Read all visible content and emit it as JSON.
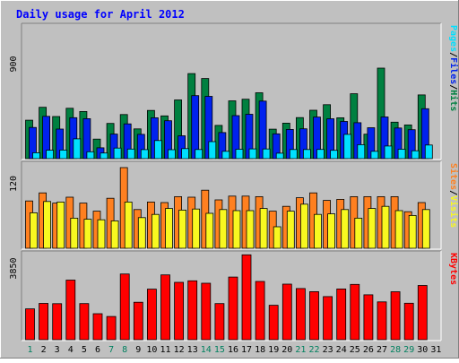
{
  "chart_data": [
    {
      "type": "bar",
      "title": "Daily usage for April 2012",
      "panel": "top",
      "categories": [
        "1",
        "2",
        "3",
        "4",
        "5",
        "6",
        "7",
        "8",
        "9",
        "10",
        "11",
        "12",
        "13",
        "14",
        "15",
        "16",
        "17",
        "18",
        "19",
        "20",
        "21",
        "22",
        "23",
        "24",
        "25",
        "26",
        "27",
        "28",
        "29",
        "30",
        "31"
      ],
      "weekend_days": [
        "1",
        "7",
        "8",
        "14",
        "15",
        "21",
        "22",
        "28",
        "29"
      ],
      "y_tick_label": "900",
      "ylim": [
        0,
        1280
      ],
      "right_labels": [
        "Pages",
        "/",
        "Files",
        "/",
        "Hits"
      ],
      "colors": {
        "Hits": "#008040",
        "Files": "#0022ee",
        "Pages": "#00e0ff"
      },
      "series": [
        {
          "name": "Hits",
          "values": [
            366,
            489,
            401,
            480,
            449,
            186,
            335,
            420,
            283,
            459,
            407,
            559,
            810,
            763,
            317,
            550,
            566,
            627,
            281,
            338,
            391,
            461,
            514,
            389,
            618,
            233,
            862,
            347,
            321,
            607,
            0
          ]
        },
        {
          "name": "Files",
          "values": [
            297,
            403,
            282,
            390,
            381,
            103,
            234,
            331,
            231,
            389,
            361,
            218,
            600,
            593,
            248,
            410,
            422,
            548,
            236,
            278,
            284,
            396,
            380,
            354,
            342,
            294,
            397,
            292,
            276,
            475,
            0
          ]
        },
        {
          "name": "Pages",
          "values": [
            56,
            80,
            82,
            189,
            66,
            54,
            101,
            91,
            86,
            172,
            85,
            96,
            87,
            162,
            70,
            90,
            93,
            92,
            52,
            87,
            87,
            88,
            79,
            231,
            133,
            70,
            120,
            90,
            75,
            130,
            0
          ]
        }
      ]
    },
    {
      "type": "bar",
      "panel": "middle",
      "categories": [
        "1",
        "2",
        "3",
        "4",
        "5",
        "6",
        "7",
        "8",
        "9",
        "10",
        "11",
        "12",
        "13",
        "14",
        "15",
        "16",
        "17",
        "18",
        "19",
        "20",
        "21",
        "22",
        "23",
        "24",
        "25",
        "26",
        "27",
        "28",
        "29",
        "30",
        "31"
      ],
      "y_tick_label": "120",
      "ylim": [
        0,
        160
      ],
      "right_labels": [
        "Sites",
        "/",
        "Visits"
      ],
      "colors": {
        "Visits": "#f8f820",
        "Sites": "#ff8020"
      },
      "series": [
        {
          "name": "Sites",
          "values": [
            88,
            103,
            84,
            95,
            84,
            69,
            93,
            150,
            72,
            86,
            85,
            96,
            95,
            108,
            90,
            97,
            97,
            96,
            69,
            78,
            94,
            103,
            89,
            91,
            96,
            96,
            96,
            96,
            68,
            85,
            0
          ]
        },
        {
          "name": "Visits",
          "values": [
            66,
            87,
            86,
            56,
            54,
            53,
            51,
            86,
            57,
            63,
            74,
            71,
            73,
            65,
            72,
            70,
            70,
            74,
            40,
            69,
            82,
            63,
            64,
            72,
            56,
            74,
            78,
            70,
            61,
            72,
            0
          ]
        }
      ]
    },
    {
      "type": "bar",
      "panel": "bottom",
      "categories": [
        "1",
        "2",
        "3",
        "4",
        "5",
        "6",
        "7",
        "8",
        "9",
        "10",
        "11",
        "12",
        "13",
        "14",
        "15",
        "16",
        "17",
        "18",
        "19",
        "20",
        "21",
        "22",
        "23",
        "24",
        "25",
        "26",
        "27",
        "28",
        "29",
        "30",
        "31"
      ],
      "y_tick_label": "3850",
      "ylim": [
        0,
        4750
      ],
      "right_labels": [
        "KBytes"
      ],
      "colors": {
        "KBytes": "#ff0000"
      },
      "series": [
        {
          "name": "KBytes",
          "values": [
            1669,
            1965,
            1948,
            3225,
            1951,
            1407,
            1254,
            3551,
            2025,
            2734,
            3503,
            3103,
            3184,
            3055,
            1954,
            3389,
            4591,
            3149,
            1860,
            3003,
            2769,
            2600,
            2332,
            2741,
            2992,
            2429,
            2047,
            2594,
            1972,
            2931,
            0
          ]
        }
      ]
    }
  ]
}
